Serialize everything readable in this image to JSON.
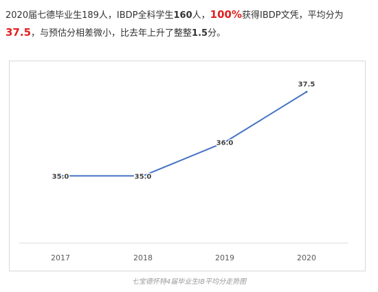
{
  "intro": {
    "p1": "2020届七德毕业生189人，IBDP全科学生",
    "n160": "160",
    "p2": "人，",
    "pct": "100%",
    "p3": "获得IBDP文凭，平均分为",
    "avg": "37.5",
    "p4": "，与预估分相差微小，比去年上升了整整",
    "inc": "1.5",
    "p5": "分。"
  },
  "caption": "七宝德怀特4届毕业生IB平均分走势图",
  "colors": {
    "line": "#4472c4",
    "highlight": "#e02020"
  },
  "chart_data": {
    "type": "line",
    "categories": [
      "2017",
      "2018",
      "2019",
      "2020"
    ],
    "values": [
      35.0,
      35.0,
      36.0,
      37.5
    ],
    "data_labels": [
      "35.0",
      "35.0",
      "36.0",
      "37.5"
    ],
    "ylim": [
      33.0,
      38.0
    ],
    "grid": false,
    "legend": "none",
    "title": "",
    "xlabel": "",
    "ylabel": ""
  }
}
